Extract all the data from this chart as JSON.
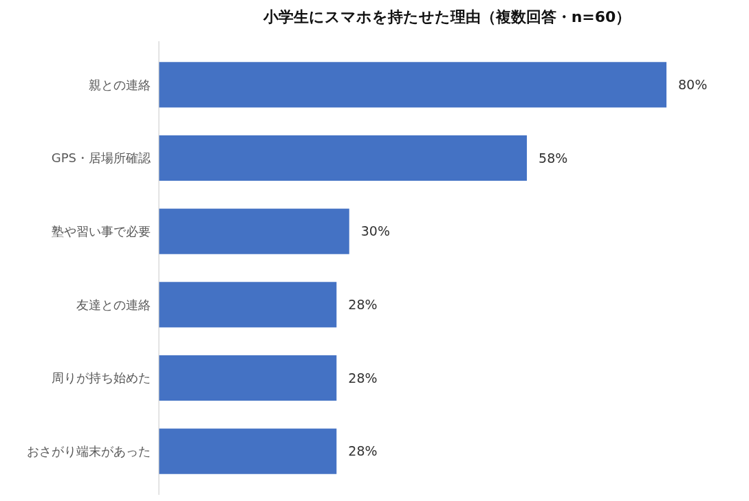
{
  "chart_data": {
    "type": "bar",
    "orientation": "horizontal",
    "title": "小学生にスマホを持たせた理由（複数回答・n=60）",
    "categories": [
      "親との連絡",
      "GPS・居場所確認",
      "塾や習い事で必要",
      "友達との連絡",
      "周りが持ち始めた",
      "おさがり端末があった"
    ],
    "values": [
      80,
      58,
      30,
      28,
      28,
      28
    ],
    "value_labels": [
      "80%",
      "58%",
      "30%",
      "28%",
      "28%",
      "28%"
    ],
    "color": "#4472c4"
  }
}
